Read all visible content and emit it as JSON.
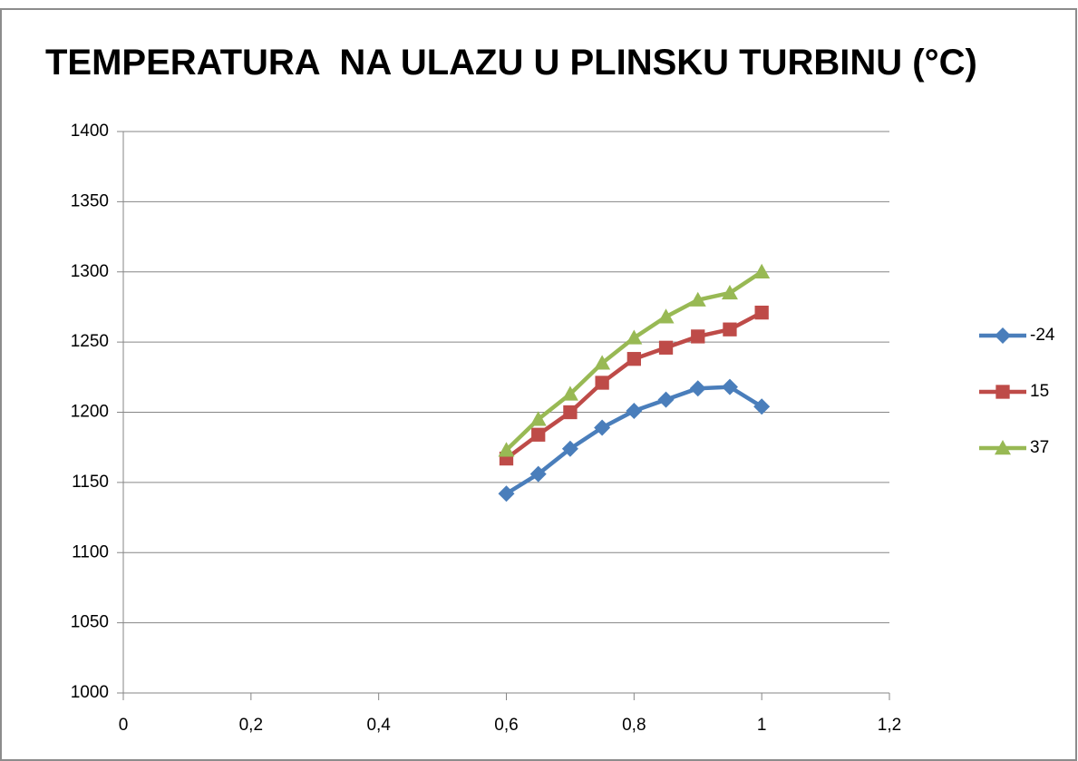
{
  "chart_data": {
    "type": "line",
    "title": "TEMPERATURA  NA ULAZU U PLINSKU TURBINU (°C)",
    "x": [
      0.6,
      0.65,
      0.7,
      0.75,
      0.8,
      0.85,
      0.9,
      0.95,
      1
    ],
    "series": [
      {
        "name": "-24",
        "color": "#4a7ebb",
        "marker": "diamond",
        "values": [
          1142,
          1156,
          1174,
          1189,
          1201,
          1209,
          1217,
          1218,
          1204
        ]
      },
      {
        "name": "15",
        "color": "#be4b48",
        "marker": "square",
        "values": [
          1167,
          1184,
          1200,
          1221,
          1238,
          1246,
          1254,
          1259,
          1271
        ]
      },
      {
        "name": "37",
        "color": "#98b954",
        "marker": "triangle",
        "values": [
          1173,
          1195,
          1213,
          1235,
          1253,
          1268,
          1280,
          1285,
          1300
        ]
      }
    ],
    "xlim": [
      0,
      1.2
    ],
    "xticks": [
      0,
      {
        "value": 0.2,
        "label": "0,2"
      },
      {
        "value": 0.4,
        "label": "0,4"
      },
      {
        "value": 0.6,
        "label": "0,6"
      },
      {
        "value": 0.8,
        "label": "0,8"
      },
      1,
      {
        "value": 1.2,
        "label": "1,2"
      }
    ],
    "ylim": [
      1000,
      1400
    ],
    "yticks": [
      1000,
      1050,
      1100,
      1150,
      1200,
      1250,
      1300,
      1350,
      1400
    ],
    "grid": true,
    "legend": "right"
  }
}
